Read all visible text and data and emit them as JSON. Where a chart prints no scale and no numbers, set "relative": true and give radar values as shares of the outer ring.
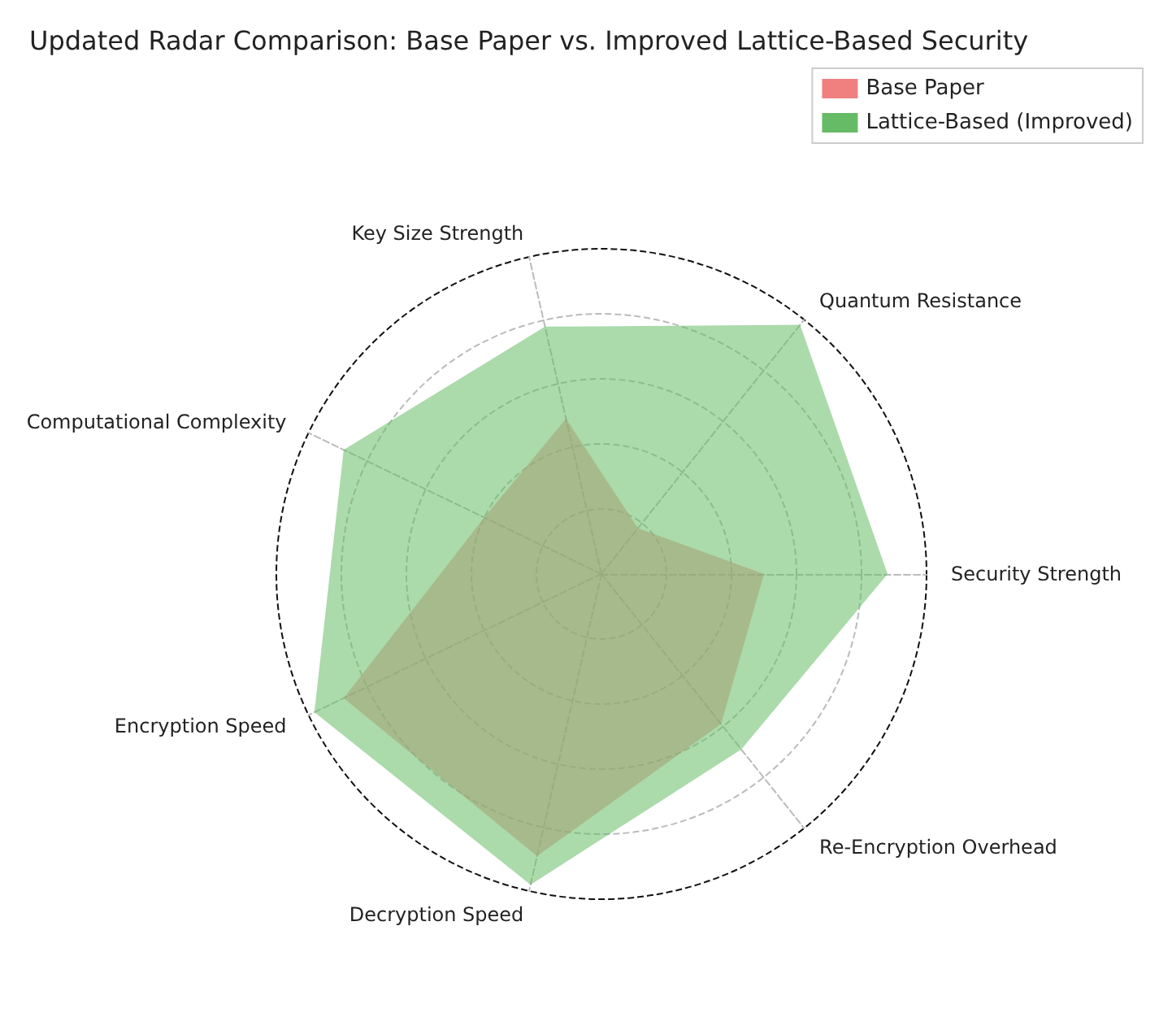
{
  "chart_data": {
    "type": "radar",
    "title": "Updated Radar Comparison: Base Paper vs. Improved Lattice-Based Security",
    "categories": [
      "Key Size Strength",
      "Quantum Resistance",
      "Security Strength",
      "Re-Encryption Overhead",
      "Decryption Speed",
      "Encryption Speed",
      "Computational Complexity"
    ],
    "relative": true,
    "grid": true,
    "legend": "top right",
    "marker": "none",
    "series": [
      {
        "name": "Base Paper",
        "color": "#f08080",
        "values": [
          0.49,
          0.18,
          0.5,
          0.59,
          0.89,
          0.88,
          0.4
        ]
      },
      {
        "name": "Lattice-Based (Improved)",
        "color": "#66bb66",
        "values": [
          0.78,
          0.98,
          0.88,
          0.69,
          0.98,
          0.98,
          0.88
        ]
      }
    ]
  }
}
